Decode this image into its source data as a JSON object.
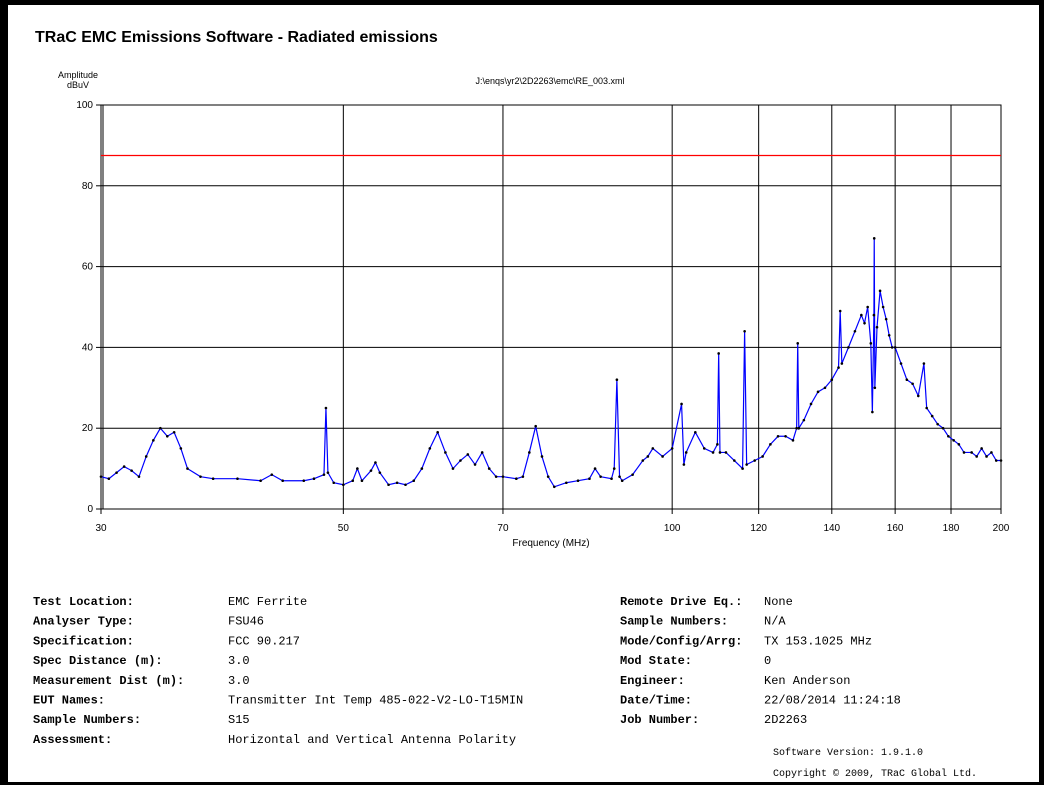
{
  "header": {
    "title": "TRaC EMC Emissions Software - Radiated emissions"
  },
  "chart_data": {
    "type": "line",
    "title": "J:\\enqs\\yr2\\2D2263\\emc\\RE_003.xml",
    "ylabel": "Amplitude",
    "yunit": "dBuV",
    "xlabel": "Frequency (MHz)",
    "xscale": "log",
    "xlim": [
      30,
      200
    ],
    "xticks": [
      30,
      50,
      70,
      100,
      120,
      140,
      160,
      180,
      200
    ],
    "ylim": [
      0,
      100
    ],
    "yticks": [
      0,
      20,
      40,
      60,
      80,
      100
    ],
    "grid": true,
    "limit": {
      "value": 87.5,
      "color": "#ff0000"
    },
    "series": [
      {
        "color": "#0000ff",
        "marker_color": "#000000",
        "x": [
          30,
          30.5,
          31,
          31.5,
          32,
          32.5,
          33,
          33.5,
          34,
          34.5,
          35,
          35.5,
          36,
          37,
          38,
          40,
          42,
          43,
          44,
          46,
          47,
          48,
          48.2,
          48.4,
          49,
          50,
          51,
          51.5,
          52,
          53,
          53.5,
          54,
          55,
          56,
          57,
          58,
          59,
          60,
          61,
          62,
          63,
          64,
          65,
          66,
          67,
          68,
          69,
          70,
          72,
          73,
          74,
          75,
          76,
          77,
          78,
          80,
          82,
          84,
          85,
          86,
          88,
          88.5,
          89,
          89.5,
          90,
          92,
          94,
          95,
          96,
          98,
          100,
          102,
          102.5,
          103,
          105,
          107,
          109,
          110,
          110.3,
          110.6,
          112,
          114,
          116,
          116.5,
          117,
          119,
          121,
          123,
          125,
          127,
          129,
          130,
          130.3,
          130.6,
          132,
          134,
          136,
          138,
          140,
          142,
          142.5,
          143,
          145,
          147,
          149,
          150,
          151,
          152,
          152.5,
          153,
          153.1,
          153.3,
          154,
          155,
          156,
          157,
          158,
          159,
          160,
          162,
          164,
          166,
          168,
          170,
          171,
          173,
          175,
          177,
          179,
          181,
          183,
          185,
          188,
          190,
          192,
          194,
          196,
          198,
          200
        ],
        "values": [
          8,
          7.5,
          9,
          10.5,
          9.5,
          8,
          13,
          17,
          20,
          18,
          19,
          15,
          10,
          8,
          7.5,
          7.5,
          7,
          8.5,
          7,
          7,
          7.5,
          8.5,
          25,
          9,
          6.5,
          6,
          7,
          10,
          7,
          9.5,
          11.5,
          9,
          6,
          6.5,
          6,
          7,
          10,
          15,
          19,
          14,
          10,
          12,
          13.5,
          11,
          14,
          10,
          8,
          8,
          7.5,
          8,
          14,
          20.5,
          13,
          8,
          5.5,
          6.5,
          7,
          7.5,
          10,
          8,
          7.5,
          10,
          32,
          8,
          7,
          8.5,
          12,
          13,
          15,
          13,
          15,
          26,
          11,
          14,
          19,
          15,
          14,
          16,
          38.5,
          14,
          14,
          12,
          10,
          44,
          11,
          12,
          13,
          16,
          18,
          18,
          17,
          20,
          41,
          20,
          22,
          26,
          29,
          30,
          32,
          35,
          49,
          36,
          40,
          44,
          48,
          46,
          50,
          41,
          24,
          48,
          67,
          30,
          45,
          54,
          50,
          47,
          43,
          40,
          40,
          36,
          32,
          31,
          28,
          36,
          25,
          23,
          21,
          20,
          18,
          17,
          16,
          14,
          14,
          13,
          15,
          13,
          14,
          12,
          12
        ]
      }
    ]
  },
  "details": {
    "left": [
      [
        "Test Location:",
        "EMC Ferrite"
      ],
      [
        "Analyser Type:",
        "FSU46"
      ],
      [
        "Specification:",
        "FCC 90.217"
      ],
      [
        "Spec Distance (m):",
        "3.0"
      ],
      [
        "Measurement Dist (m):",
        "3.0"
      ],
      [
        "EUT Names:",
        "Transmitter Int Temp 485-022-V2-LO-T15MIN"
      ],
      [
        "Sample Numbers:",
        "S15"
      ],
      [
        "Assessment:",
        "Horizontal and Vertical Antenna Polarity"
      ]
    ],
    "right": [
      [
        "Remote Drive Eq.:",
        "None"
      ],
      [
        "Sample Numbers:",
        "N/A"
      ],
      [
        "Mode/Config/Arrg:",
        "TX 153.1025 MHz"
      ],
      [
        "Mod State:",
        "0"
      ],
      [
        "Engineer:",
        "Ken Anderson"
      ],
      [
        "Date/Time:",
        "22/08/2014 11:24:18"
      ],
      [
        "Job Number:",
        "2D2263"
      ]
    ],
    "software_version": "Software Version: 1.9.1.0",
    "copyright": "Copyright © 2009, TRaC Global Ltd."
  }
}
